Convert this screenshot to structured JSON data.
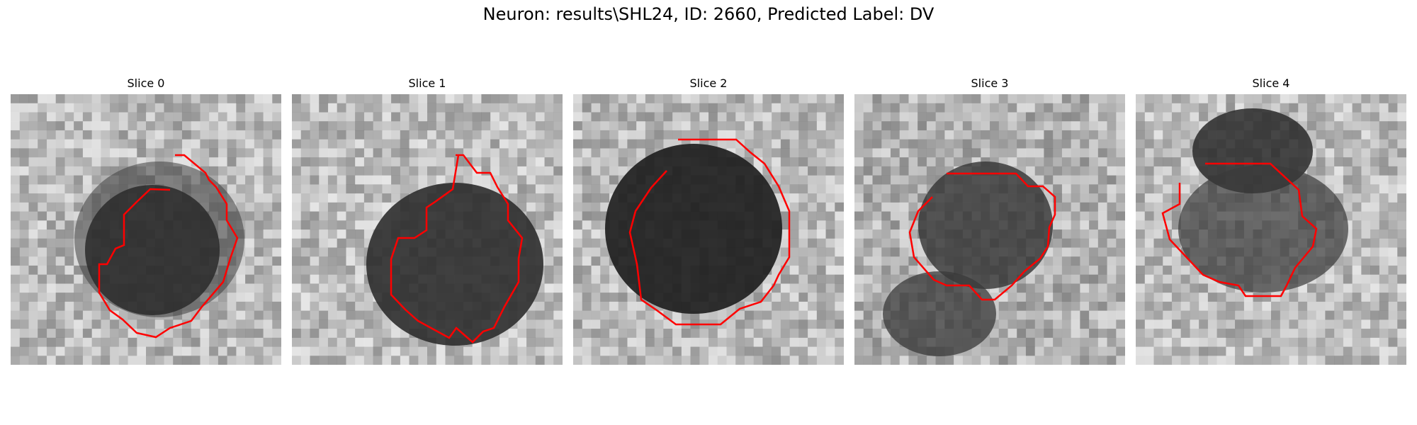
{
  "figure": {
    "title": "Neuron: results\\SHL24, ID: 2660, Predicted Label: DV",
    "contour_color": "#ff0000",
    "panels": [
      {
        "label": "Slice 0"
      },
      {
        "label": "Slice 1"
      },
      {
        "label": "Slice 2"
      },
      {
        "label": "Slice 3"
      },
      {
        "label": "Slice 4"
      }
    ]
  }
}
